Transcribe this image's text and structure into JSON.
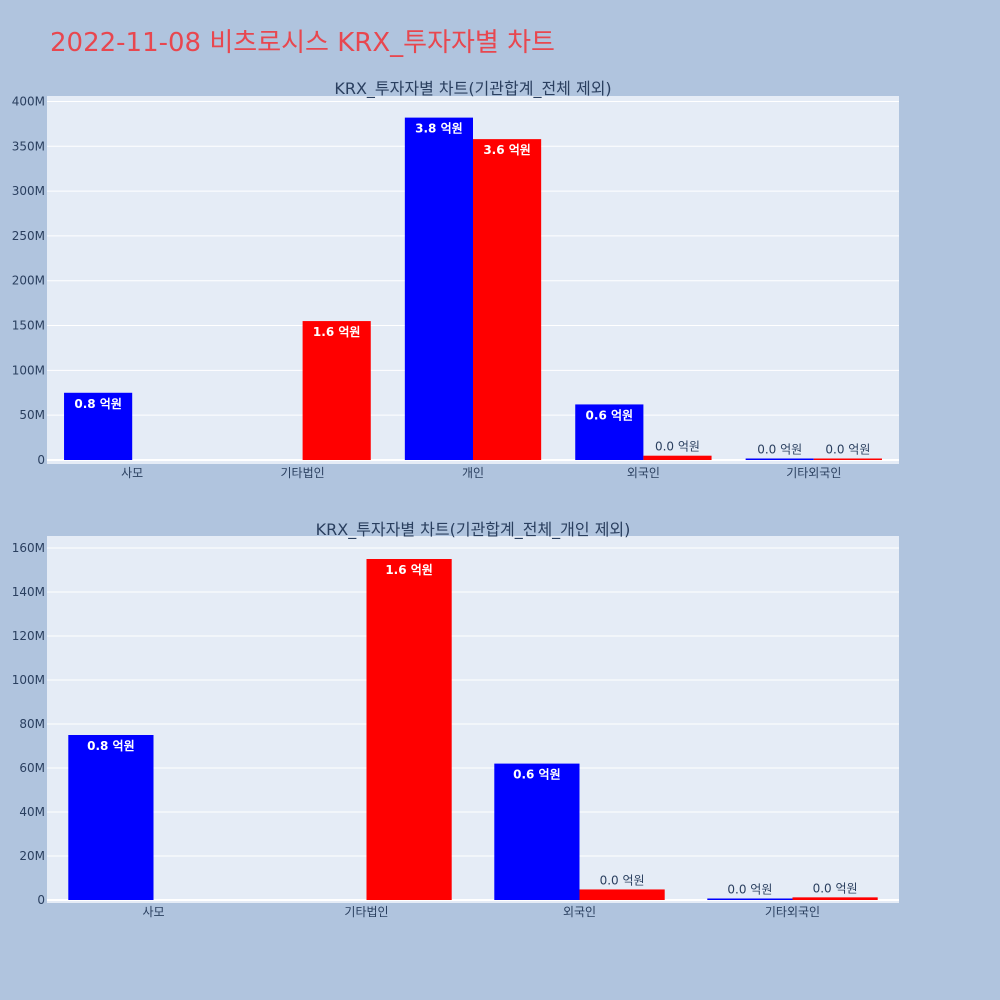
{
  "page": {
    "title": "2022-11-08 비츠로시스 KRX_투자자별 차트"
  },
  "colors": {
    "series_a": "#0000ff",
    "series_b": "#ff0000",
    "plot_bg": "#e5ecf6",
    "page_bg": "#b0c4de",
    "title": "#e8474f"
  },
  "chart_data": [
    {
      "type": "bar",
      "title": "KRX_투자자별 차트(기관합계_전체 제외)",
      "categories": [
        "사모",
        "기타법인",
        "개인",
        "외국인",
        "기타외국인"
      ],
      "series": [
        {
          "color": "#0000ff",
          "values": [
            75000000,
            0,
            382000000,
            62000000,
            300000
          ],
          "labels": [
            "0.8 억원",
            "",
            "3.8 억원",
            "0.6 억원",
            "0.0 억원"
          ]
        },
        {
          "color": "#ff0000",
          "values": [
            0,
            155000000,
            358000000,
            4800000,
            1200000
          ],
          "labels": [
            "",
            "1.6 억원",
            "3.6 억원",
            "0.0 억원",
            "0.0 억원"
          ]
        }
      ],
      "ylim": [
        0,
        405000000
      ],
      "yticks": [
        0,
        50000000,
        100000000,
        150000000,
        200000000,
        250000000,
        300000000,
        350000000,
        400000000
      ],
      "ytick_labels": [
        "0",
        "50M",
        "100M",
        "150M",
        "200M",
        "250M",
        "300M",
        "350M",
        "400M"
      ],
      "grid": true,
      "legend": "none"
    },
    {
      "type": "bar",
      "title": "KRX_투자자별 차트(기관합계_전체_개인 제외)",
      "categories": [
        "사모",
        "기타법인",
        "외국인",
        "기타외국인"
      ],
      "series": [
        {
          "color": "#0000ff",
          "values": [
            75000000,
            0,
            62000000,
            300000
          ],
          "labels": [
            "0.8 억원",
            "",
            "0.6 억원",
            "0.0 억원"
          ]
        },
        {
          "color": "#ff0000",
          "values": [
            0,
            155000000,
            4800000,
            1200000
          ],
          "labels": [
            "",
            "1.6 억원",
            "0.0 억원",
            "0.0 억원"
          ]
        }
      ],
      "ylim": [
        0,
        165000000
      ],
      "yticks": [
        0,
        20000000,
        40000000,
        60000000,
        80000000,
        100000000,
        120000000,
        140000000,
        160000000
      ],
      "ytick_labels": [
        "0",
        "20M",
        "40M",
        "60M",
        "80M",
        "100M",
        "120M",
        "140M",
        "160M"
      ],
      "grid": true,
      "legend": "none"
    }
  ]
}
